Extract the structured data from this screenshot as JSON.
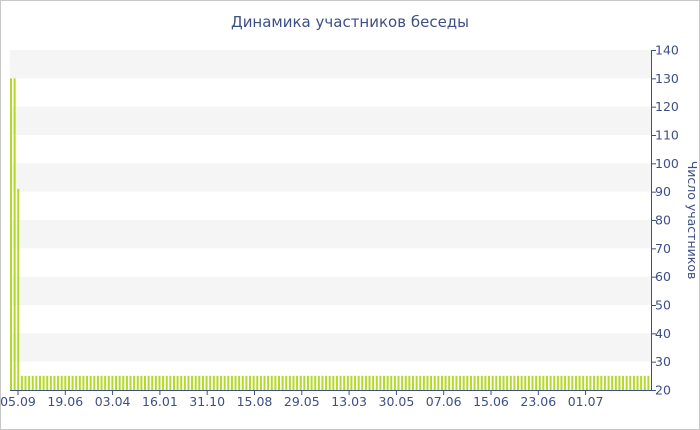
{
  "chart_data": {
    "type": "bar",
    "title": "Динамика участников беседы",
    "xlabel": "",
    "ylabel": "Число участников",
    "ylim": [
      20,
      140
    ],
    "yticks": [
      20,
      30,
      40,
      50,
      60,
      70,
      80,
      90,
      100,
      110,
      120,
      130,
      140
    ],
    "y_axis_side": "right",
    "grid": "horizontal-bands",
    "colors": {
      "bar": "#b5d92b",
      "band": "#f5f5f5",
      "text": "#3e4f86",
      "axis": "#3e4f86"
    },
    "x_tick_labels": [
      "05.09",
      "19.06",
      "03.04",
      "16.01",
      "31.10",
      "15.08",
      "29.05",
      "13.03",
      "30.05",
      "07.06",
      "15.06",
      "23.06",
      "01.07"
    ],
    "values": [
      130,
      130,
      91,
      25,
      25,
      25,
      25,
      25,
      25,
      25,
      25,
      25,
      25,
      25,
      25,
      25,
      25,
      25,
      25,
      25,
      25,
      25,
      25,
      25,
      25,
      25,
      25,
      25,
      25,
      25,
      25,
      25,
      25,
      25,
      25,
      25,
      25,
      25,
      25,
      25,
      25,
      25,
      25,
      25,
      25,
      25,
      25,
      25,
      25,
      25,
      25,
      25,
      25,
      25,
      25,
      25,
      25,
      25,
      25,
      25,
      25,
      25,
      25,
      25,
      25,
      25,
      25,
      25,
      25,
      25,
      25,
      25,
      25,
      25,
      25,
      25,
      25,
      25,
      25,
      25,
      25,
      25,
      25,
      25,
      25,
      25,
      25,
      25,
      25,
      25,
      25,
      25,
      25,
      25,
      25,
      25,
      25,
      25,
      25,
      25,
      25,
      25,
      25,
      25,
      25,
      25,
      25,
      25,
      25,
      25,
      25,
      25,
      25,
      25,
      25,
      25,
      25,
      25,
      25,
      25,
      25,
      25,
      25,
      25,
      25,
      25,
      25,
      25,
      25,
      25,
      25,
      25,
      25,
      25,
      25,
      25,
      25,
      25,
      25,
      25,
      25,
      25,
      25,
      25,
      25,
      25,
      25,
      25,
      25,
      25,
      25,
      25,
      25,
      25,
      25,
      25,
      25,
      25,
      25,
      25,
      25,
      25,
      25,
      25,
      25,
      25,
      25,
      25,
      25,
      25,
      25,
      25,
      25,
      25,
      25,
      25,
      25
    ]
  }
}
